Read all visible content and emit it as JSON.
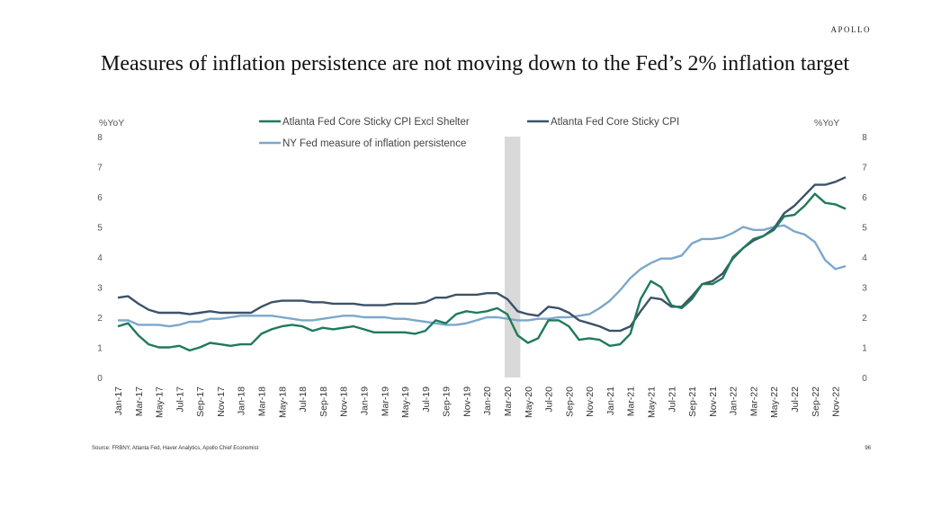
{
  "header": {
    "brand": "APOLLO",
    "title": "Measures of inflation persistence are not moving down to the Fed’s 2% inflation target"
  },
  "footer": {
    "source": "Source: FRBNY, Atlanta Fed, Haver Analytics, Apollo Chief Economist",
    "page_number": "96"
  },
  "chart_data": {
    "type": "line",
    "title": "Measures of inflation persistence are not moving down to the Fed’s 2% inflation target",
    "ylabel_left": "%YoY",
    "ylabel_right": "%YoY",
    "ylim": [
      0,
      8
    ],
    "yticks": [
      0,
      1,
      2,
      3,
      4,
      5,
      6,
      7,
      8
    ],
    "legend_position": "top",
    "recession_shading": {
      "from": "Mar-20",
      "to": "Apr-20",
      "color": "#d9d9d9"
    },
    "x": [
      "Jan-17",
      "Feb-17",
      "Mar-17",
      "Apr-17",
      "May-17",
      "Jun-17",
      "Jul-17",
      "Aug-17",
      "Sep-17",
      "Oct-17",
      "Nov-17",
      "Dec-17",
      "Jan-18",
      "Feb-18",
      "Mar-18",
      "Apr-18",
      "May-18",
      "Jun-18",
      "Jul-18",
      "Aug-18",
      "Sep-18",
      "Oct-18",
      "Nov-18",
      "Dec-18",
      "Jan-19",
      "Feb-19",
      "Mar-19",
      "Apr-19",
      "May-19",
      "Jun-19",
      "Jul-19",
      "Aug-19",
      "Sep-19",
      "Oct-19",
      "Nov-19",
      "Dec-19",
      "Jan-20",
      "Feb-20",
      "Mar-20",
      "Apr-20",
      "May-20",
      "Jun-20",
      "Jul-20",
      "Aug-20",
      "Sep-20",
      "Oct-20",
      "Nov-20",
      "Dec-20",
      "Jan-21",
      "Feb-21",
      "Mar-21",
      "Apr-21",
      "May-21",
      "Jun-21",
      "Jul-21",
      "Aug-21",
      "Sep-21",
      "Oct-21",
      "Nov-21",
      "Dec-21",
      "Jan-22",
      "Feb-22",
      "Mar-22",
      "Apr-22",
      "May-22",
      "Jun-22",
      "Jul-22",
      "Aug-22",
      "Sep-22",
      "Oct-22",
      "Nov-22",
      "Dec-22"
    ],
    "xtick_labels": [
      "Jan-17",
      "Mar-17",
      "May-17",
      "Jul-17",
      "Sep-17",
      "Nov-17",
      "Jan-18",
      "Mar-18",
      "May-18",
      "Jul-18",
      "Sep-18",
      "Nov-18",
      "Jan-19",
      "Mar-19",
      "May-19",
      "Jul-19",
      "Sep-19",
      "Nov-19",
      "Jan-20",
      "Mar-20",
      "May-20",
      "Jul-20",
      "Sep-20",
      "Nov-20",
      "Jan-21",
      "Mar-21",
      "May-21",
      "Jul-21",
      "Sep-21",
      "Nov-21",
      "Jan-22",
      "Mar-22",
      "May-22",
      "Jul-22",
      "Sep-22",
      "Nov-22"
    ],
    "series": [
      {
        "name": "Atlanta Fed Core Sticky CPI Excl Shelter",
        "color": "#1f7a5a",
        "values": [
          1.7,
          1.8,
          1.4,
          1.1,
          1.0,
          1.0,
          1.05,
          0.9,
          1.0,
          1.15,
          1.1,
          1.05,
          1.1,
          1.1,
          1.45,
          1.6,
          1.7,
          1.75,
          1.7,
          1.55,
          1.65,
          1.6,
          1.65,
          1.7,
          1.6,
          1.5,
          1.5,
          1.5,
          1.5,
          1.45,
          1.55,
          1.9,
          1.8,
          2.1,
          2.2,
          2.15,
          2.2,
          2.3,
          2.1,
          1.4,
          1.15,
          1.3,
          1.9,
          1.9,
          1.7,
          1.25,
          1.3,
          1.25,
          1.05,
          1.1,
          1.45,
          2.6,
          3.2,
          3.0,
          2.4,
          2.3,
          2.6,
          3.1,
          3.1,
          3.3,
          4.0,
          4.3,
          4.6,
          4.7,
          4.9,
          5.35,
          5.4,
          5.7,
          6.1,
          5.8,
          5.75,
          5.6
        ]
      },
      {
        "name": "Atlanta Fed Core Sticky CPI",
        "color": "#3c5268",
        "values": [
          2.65,
          2.7,
          2.45,
          2.25,
          2.15,
          2.15,
          2.15,
          2.1,
          2.15,
          2.2,
          2.15,
          2.15,
          2.15,
          2.15,
          2.35,
          2.5,
          2.55,
          2.55,
          2.55,
          2.5,
          2.5,
          2.45,
          2.45,
          2.45,
          2.4,
          2.4,
          2.4,
          2.45,
          2.45,
          2.45,
          2.5,
          2.65,
          2.65,
          2.75,
          2.75,
          2.75,
          2.8,
          2.8,
          2.6,
          2.2,
          2.1,
          2.05,
          2.35,
          2.3,
          2.15,
          1.9,
          1.8,
          1.7,
          1.55,
          1.55,
          1.7,
          2.2,
          2.65,
          2.6,
          2.35,
          2.35,
          2.7,
          3.1,
          3.2,
          3.45,
          3.95,
          4.3,
          4.55,
          4.7,
          4.95,
          5.45,
          5.7,
          6.05,
          6.4,
          6.4,
          6.5,
          6.65
        ]
      },
      {
        "name": "NY Fed measure of inflation persistence",
        "color": "#7ba7cc",
        "values": [
          1.9,
          1.9,
          1.75,
          1.75,
          1.75,
          1.7,
          1.75,
          1.85,
          1.85,
          1.95,
          1.95,
          2.0,
          2.05,
          2.05,
          2.05,
          2.05,
          2.0,
          1.95,
          1.9,
          1.9,
          1.95,
          2.0,
          2.05,
          2.05,
          2.0,
          2.0,
          2.0,
          1.95,
          1.95,
          1.9,
          1.85,
          1.8,
          1.75,
          1.75,
          1.8,
          1.9,
          2.0,
          2.0,
          1.95,
          1.9,
          1.9,
          1.95,
          1.95,
          2.0,
          2.0,
          2.05,
          2.1,
          2.3,
          2.55,
          2.9,
          3.3,
          3.6,
          3.8,
          3.95,
          3.95,
          4.05,
          4.45,
          4.6,
          4.6,
          4.65,
          4.8,
          5.0,
          4.9,
          4.9,
          5.0,
          5.05,
          4.85,
          4.75,
          4.5,
          3.9,
          3.6,
          3.7
        ]
      }
    ]
  }
}
